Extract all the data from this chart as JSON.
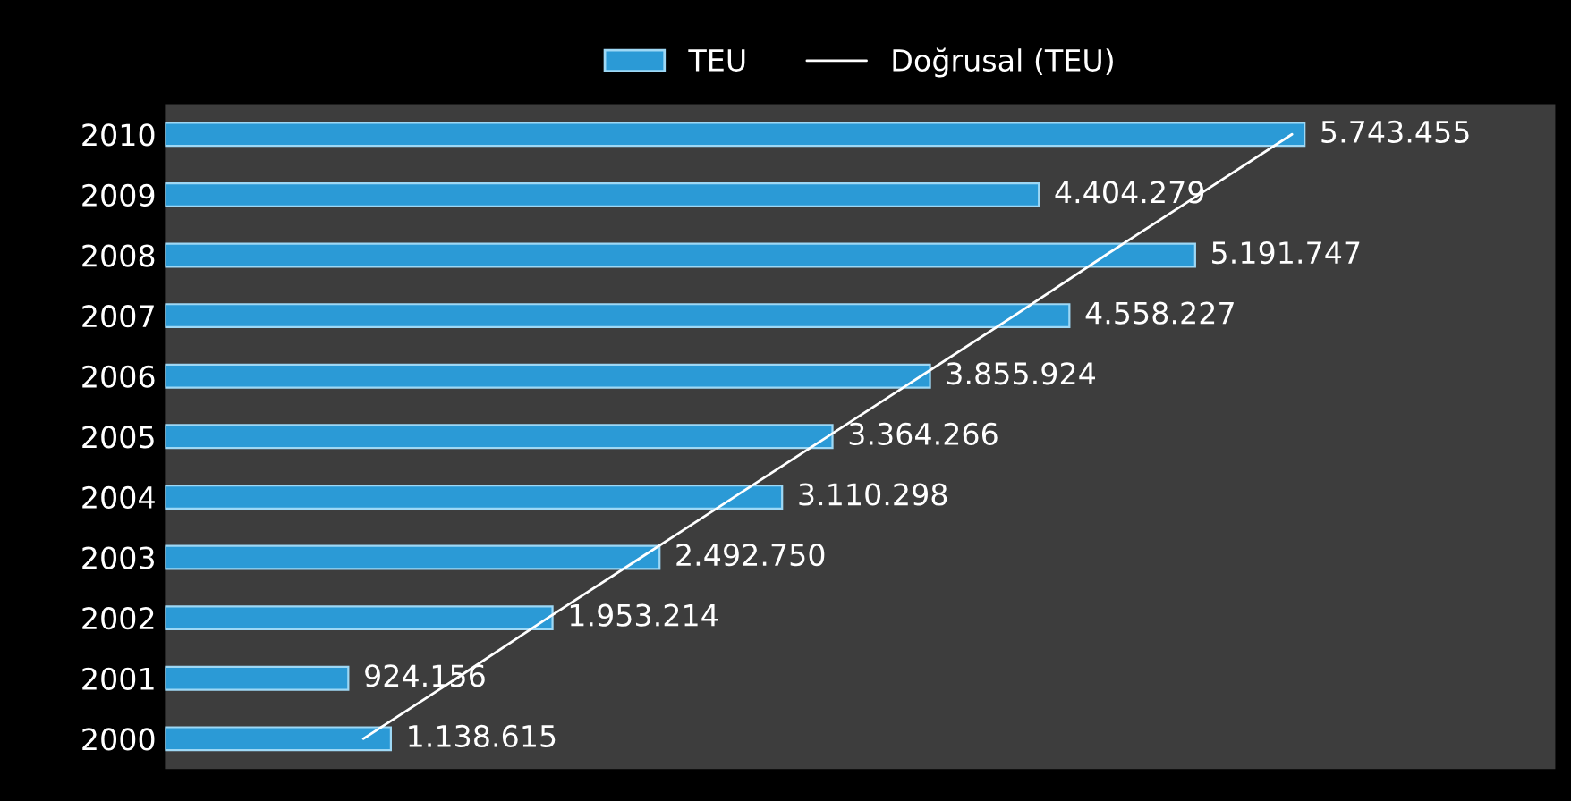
{
  "chart_data": {
    "type": "bar",
    "orientation": "horizontal",
    "legend": "top",
    "grid": false,
    "categories": [
      "2010",
      "2009",
      "2008",
      "2007",
      "2006",
      "2005",
      "2004",
      "2003",
      "2002",
      "2001",
      "2000"
    ],
    "series": [
      {
        "name": "TEU",
        "color": "#2b9ad6",
        "values": [
          5743455,
          4404279,
          5191747,
          4558227,
          3855924,
          3364266,
          3110298,
          2492750,
          1953214,
          924156,
          1138615
        ],
        "value_labels": [
          "5.743.455",
          "4.404.279",
          "5.191.747",
          "4.558.227",
          "3.855.924",
          "3.364.266",
          "3.110.298",
          "2.492.750",
          "1.953.214",
          "924.156",
          "1.138.615"
        ]
      },
      {
        "name": "Doğrusal (TEU)",
        "type": "line",
        "color": "#ffffff",
        "values": [
          5680000,
          5210000,
          4740000,
          4280000,
          3810000,
          3340000,
          2870000,
          2400000,
          1930000,
          1470000,
          1000000
        ]
      }
    ]
  }
}
